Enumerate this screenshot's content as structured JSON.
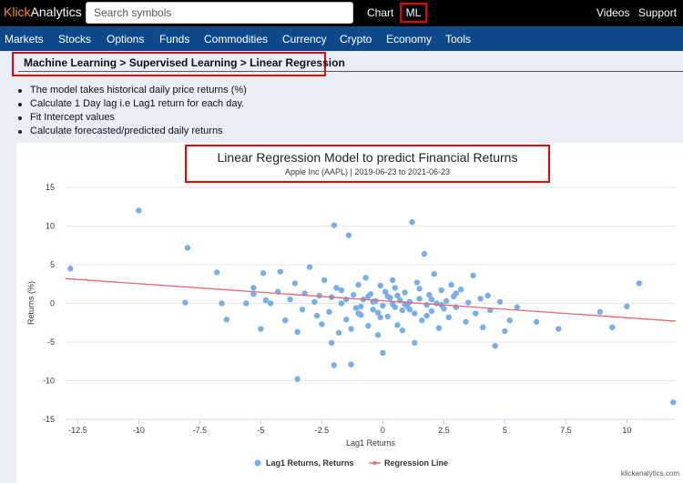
{
  "header": {
    "logo_accent": "Klick",
    "logo_rest": "Analytics",
    "search_placeholder": "Search symbols",
    "chart_link": "Chart",
    "ml_link": "ML",
    "videos_link": "Videos",
    "support_link": "Support"
  },
  "nav": [
    "Markets",
    "Stocks",
    "Options",
    "Funds",
    "Commodities",
    "Currency",
    "Crypto",
    "Economy",
    "Tools"
  ],
  "breadcrumb": "Machine Learning > Supervised Learning > Linear Regression",
  "bullets": [
    "The model takes historical daily price returns (%)",
    "Calculate 1 Day lag i.e Lag1 return for each day.",
    "Fit Intercept values",
    "Calculate forecasted/predicted daily returns"
  ],
  "credit": "klickanalytics.com",
  "colors": {
    "accent": "#f28c28",
    "nav": "#0e4a8a",
    "highlight": "#e00000",
    "points": "#7aaee8",
    "line": "#e8676c"
  },
  "chart_data": {
    "type": "scatter",
    "title": "Linear Regression Model to predict Financial Returns",
    "subtitle": "Apple Inc (AAPL) | 2019-06-23 to 2021-06-23",
    "xlabel": "Lag1 Returns",
    "ylabel": "Returns (%)",
    "xlim": [
      -13,
      12
    ],
    "ylim": [
      -15,
      15
    ],
    "x_ticks": [
      "-12.5",
      "-10",
      "-7.5",
      "-5",
      "-2.5",
      "0",
      "2.5",
      "5",
      "7.5",
      "10"
    ],
    "x_tick_values": [
      -12.5,
      -10,
      -7.5,
      -5,
      -2.5,
      0,
      2.5,
      5,
      7.5,
      10
    ],
    "y_ticks": [
      "15",
      "10",
      "5",
      "0",
      "-5",
      "-10",
      "-15"
    ],
    "y_tick_values": [
      15,
      10,
      5,
      0,
      -5,
      -10,
      -15
    ],
    "grid": "horizontal",
    "legend_position": "bottom",
    "legend": [
      "Lag1 Returns, Returns",
      "Regression Line"
    ],
    "series": [
      {
        "name": "Lag1 Returns, Returns",
        "points": [
          [
            -12.8,
            4.5
          ],
          [
            -10,
            12
          ],
          [
            -8,
            7.2
          ],
          [
            -8.1,
            0.1
          ],
          [
            -6.8,
            4
          ],
          [
            -6.6,
            0
          ],
          [
            -6.4,
            -2.1
          ],
          [
            -5.6,
            0
          ],
          [
            -5.3,
            2
          ],
          [
            -5.3,
            1.2
          ],
          [
            -5.0,
            -3.3
          ],
          [
            -4.8,
            0.4
          ],
          [
            -4.9,
            3.9
          ],
          [
            -4.6,
            0
          ],
          [
            -4.3,
            1.5
          ],
          [
            -4.2,
            4.1
          ],
          [
            -4.0,
            -2.2
          ],
          [
            -3.8,
            0.5
          ],
          [
            -3.6,
            2.6
          ],
          [
            -3.5,
            -3.7
          ],
          [
            -3.3,
            -0.8
          ],
          [
            -3.2,
            1.3
          ],
          [
            -3.0,
            4.7
          ],
          [
            -2.8,
            0.2
          ],
          [
            -2.7,
            -1.6
          ],
          [
            -2.5,
            -2.7
          ],
          [
            -2.4,
            3.0
          ],
          [
            -2.2,
            -1.1
          ],
          [
            -2.1,
            0.8
          ],
          [
            -2.0,
            10.1
          ],
          [
            -2.0,
            -8.0
          ],
          [
            -1.9,
            2.0
          ],
          [
            -1.8,
            -3.8
          ],
          [
            -1.7,
            0.0
          ],
          [
            -1.5,
            -2.1
          ],
          [
            -1.4,
            8.8
          ],
          [
            -1.3,
            -7.9
          ],
          [
            -1.2,
            1.1
          ],
          [
            -1.1,
            -0.6
          ],
          [
            -1.0,
            2.4
          ],
          [
            -0.9,
            -1.5
          ],
          [
            -0.8,
            0.5
          ],
          [
            -0.7,
            3.3
          ],
          [
            -0.6,
            -2.9
          ],
          [
            -0.5,
            1.2
          ],
          [
            -0.4,
            -0.8
          ],
          [
            -0.3,
            0.3
          ],
          [
            -0.2,
            -4.1
          ],
          [
            -0.1,
            2.3
          ],
          [
            0.0,
            -0.3
          ],
          [
            0.1,
            1.5
          ],
          [
            0.2,
            -1.7
          ],
          [
            0.3,
            0.7
          ],
          [
            0.4,
            -0.1
          ],
          [
            0.5,
            2.0
          ],
          [
            0.6,
            -2.8
          ],
          [
            0.7,
            0.4
          ],
          [
            0.8,
            -0.9
          ],
          [
            0.9,
            1.4
          ],
          [
            1.0,
            -0.4
          ],
          [
            1.1,
            0.2
          ],
          [
            1.2,
            10.5
          ],
          [
            1.3,
            -1.3
          ],
          [
            1.4,
            2.7
          ],
          [
            1.5,
            0.6
          ],
          [
            1.6,
            -2.2
          ],
          [
            1.7,
            6.4
          ],
          [
            1.8,
            -0.2
          ],
          [
            1.9,
            1.1
          ],
          [
            2.0,
            -1.0
          ],
          [
            2.1,
            3.8
          ],
          [
            2.2,
            0.0
          ],
          [
            2.3,
            -3.2
          ],
          [
            2.4,
            1.7
          ],
          [
            2.5,
            -0.7
          ],
          [
            2.6,
            0.3
          ],
          [
            2.7,
            -1.8
          ],
          [
            2.8,
            2.4
          ],
          [
            2.9,
            0.9
          ],
          [
            3.0,
            -0.5
          ],
          [
            3.2,
            1.8
          ],
          [
            3.4,
            -2.4
          ],
          [
            3.5,
            0.1
          ],
          [
            3.7,
            3.6
          ],
          [
            3.8,
            -1.3
          ],
          [
            4.0,
            0.6
          ],
          [
            4.1,
            -3.1
          ],
          [
            4.3,
            1.0
          ],
          [
            4.4,
            -0.9
          ],
          [
            4.6,
            -5.5
          ],
          [
            4.8,
            0.2
          ],
          [
            5.0,
            -3.6
          ],
          [
            5.2,
            -2.2
          ],
          [
            5.5,
            -0.5
          ],
          [
            6.3,
            -2.4
          ],
          [
            7.2,
            -3.3
          ],
          [
            8.9,
            -1.1
          ],
          [
            9.4,
            -3.1
          ],
          [
            10.0,
            -0.4
          ],
          [
            10.5,
            2.6
          ],
          [
            11.9,
            -12.8
          ],
          [
            -1.3,
            -3.3
          ],
          [
            -0.2,
            -1.2
          ],
          [
            0.4,
            3.0
          ],
          [
            0.8,
            -3.5
          ],
          [
            1.5,
            1.9
          ],
          [
            -0.6,
            0.9
          ],
          [
            -1.7,
            1.7
          ],
          [
            0.0,
            -6.4
          ],
          [
            2.4,
            -0.2
          ],
          [
            -3.5,
            -9.8
          ],
          [
            1.3,
            -5.1
          ],
          [
            -2.1,
            -5.1
          ],
          [
            3.0,
            1.3
          ],
          [
            0.9,
            -0.1
          ],
          [
            -0.4,
            0.2
          ],
          [
            -1.0,
            -1.3
          ],
          [
            0.2,
            0.9
          ],
          [
            1.8,
            -1.6
          ],
          [
            -2.6,
            1.0
          ],
          [
            0.6,
            1.0
          ],
          [
            -0.9,
            -0.4
          ],
          [
            1.1,
            -0.8
          ],
          [
            -1.5,
            0.5
          ],
          [
            2.0,
            0.5
          ],
          [
            -0.1,
            -1.8
          ],
          [
            0.5,
            -0.5
          ]
        ]
      },
      {
        "name": "Regression Line",
        "points": [
          [
            -13,
            3.2
          ],
          [
            12,
            -2.3
          ]
        ]
      }
    ]
  }
}
